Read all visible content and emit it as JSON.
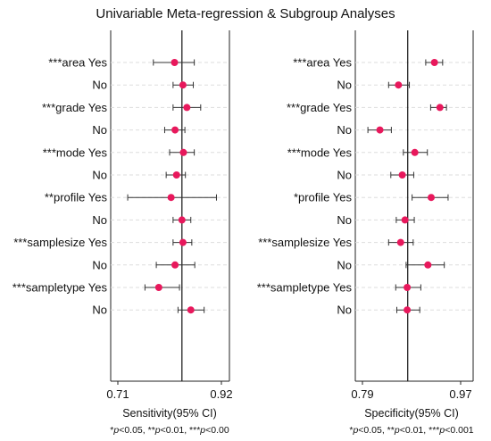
{
  "chart_data": {
    "type": "forest",
    "title": "Univariable Meta-regression & Subgroup Analyses",
    "marker_color": "#e8185c",
    "panels": [
      {
        "xlabel": "Sensitivity(95% CI)",
        "footnote": "*p<0.05, **p<0.01, ***p<0.00",
        "xlim": [
          0.71,
          0.92
        ],
        "xticks": [
          "0.71",
          "0.92"
        ],
        "reference_line": 0.84,
        "rows": [
          {
            "label": "***area Yes",
            "est": 0.825,
            "lo": 0.782,
            "hi": 0.865
          },
          {
            "label": "No",
            "est": 0.842,
            "lo": 0.822,
            "hi": 0.863
          },
          {
            "label": "***grade Yes",
            "est": 0.85,
            "lo": 0.822,
            "hi": 0.878
          },
          {
            "label": "No",
            "est": 0.826,
            "lo": 0.805,
            "hi": 0.846
          },
          {
            "label": "***mode Yes",
            "est": 0.843,
            "lo": 0.815,
            "hi": 0.865
          },
          {
            "label": "No",
            "est": 0.829,
            "lo": 0.808,
            "hi": 0.847
          },
          {
            "label": "**profile Yes",
            "est": 0.818,
            "lo": 0.73,
            "hi": 0.91
          },
          {
            "label": "No",
            "est": 0.84,
            "lo": 0.822,
            "hi": 0.858
          },
          {
            "label": "***samplesize Yes",
            "est": 0.842,
            "lo": 0.822,
            "hi": 0.86
          },
          {
            "label": "No",
            "est": 0.826,
            "lo": 0.788,
            "hi": 0.866
          },
          {
            "label": "***sampletype Yes",
            "est": 0.793,
            "lo": 0.765,
            "hi": 0.835
          },
          {
            "label": "No",
            "est": 0.858,
            "lo": 0.832,
            "hi": 0.885
          }
        ]
      },
      {
        "xlabel": "Specificity(95% CI)",
        "footnote": "*p<0.05, **p<0.01, ***p<0.001",
        "xlim": [
          0.79,
          0.97
        ],
        "xticks": [
          "0.79",
          "0.97"
        ],
        "reference_line": 0.873,
        "rows": [
          {
            "label": "***area Yes",
            "est": 0.922,
            "lo": 0.906,
            "hi": 0.937
          },
          {
            "label": "No",
            "est": 0.856,
            "lo": 0.838,
            "hi": 0.876
          },
          {
            "label": "***grade Yes",
            "est": 0.932,
            "lo": 0.915,
            "hi": 0.944
          },
          {
            "label": "No",
            "est": 0.822,
            "lo": 0.8,
            "hi": 0.843
          },
          {
            "label": "***mode Yes",
            "est": 0.886,
            "lo": 0.865,
            "hi": 0.909
          },
          {
            "label": "No",
            "est": 0.863,
            "lo": 0.842,
            "hi": 0.884
          },
          {
            "label": "*profile Yes",
            "est": 0.916,
            "lo": 0.881,
            "hi": 0.947
          },
          {
            "label": "No",
            "est": 0.868,
            "lo": 0.852,
            "hi": 0.885
          },
          {
            "label": "***samplesize Yes",
            "est": 0.86,
            "lo": 0.838,
            "hi": 0.883
          },
          {
            "label": "No",
            "est": 0.91,
            "lo": 0.87,
            "hi": 0.94
          },
          {
            "label": "***sampletype Yes",
            "est": 0.872,
            "lo": 0.851,
            "hi": 0.897
          },
          {
            "label": "No",
            "est": 0.872,
            "lo": 0.853,
            "hi": 0.895
          }
        ]
      }
    ]
  }
}
